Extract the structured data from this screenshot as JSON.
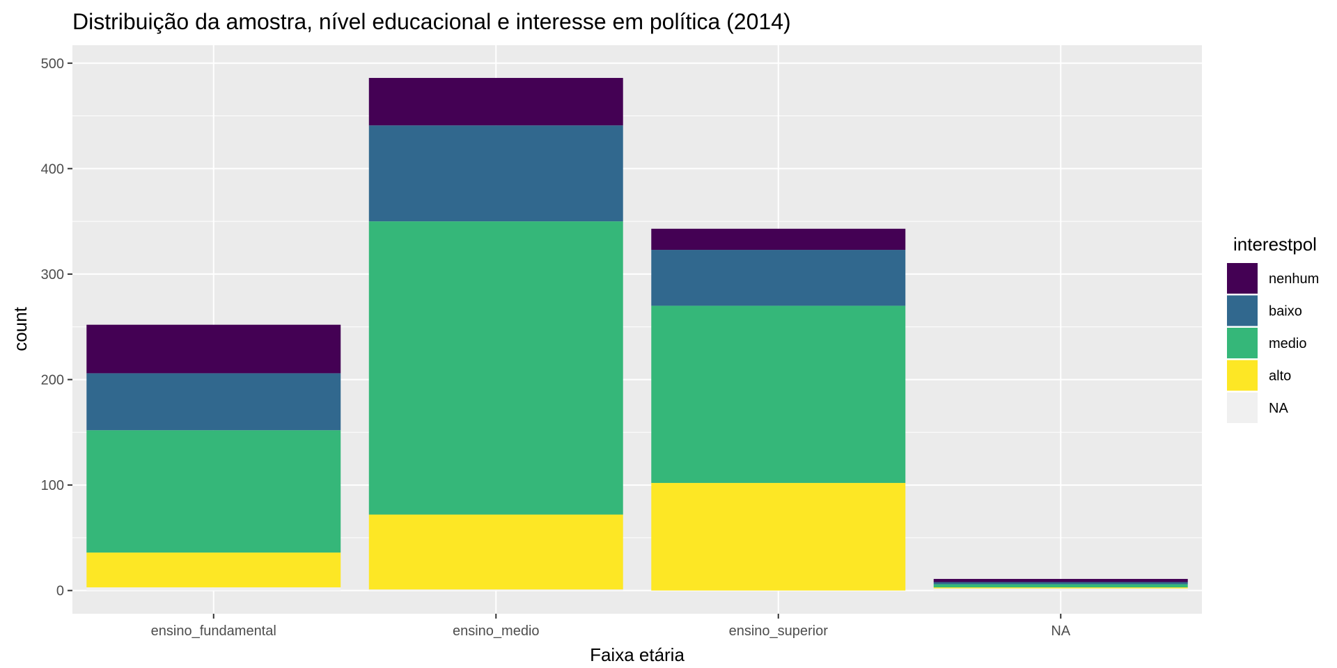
{
  "chart_data": {
    "type": "bar",
    "stacked": true,
    "title": "Distribuição da amostra, nível educacional e interesse em política (2014)",
    "xlabel": "Faixa etária",
    "ylabel": "count",
    "categories": [
      "ensino_fundamental",
      "ensino_medio",
      "ensino_superior",
      "NA"
    ],
    "ylim": [
      -22,
      517
    ],
    "yticks": [
      0,
      100,
      200,
      300,
      400,
      500
    ],
    "grid": true,
    "legend": {
      "title": "interestpol",
      "position": "right",
      "entries": [
        "nenhum",
        "baixo",
        "medio",
        "alto",
        "NA"
      ]
    },
    "series": [
      {
        "name": "NA",
        "color": "#f0f0f0",
        "values": [
          3,
          1,
          0,
          2
        ]
      },
      {
        "name": "alto",
        "color": "#fde725",
        "values": [
          33,
          71,
          102,
          1
        ]
      },
      {
        "name": "medio",
        "color": "#35b779",
        "values": [
          116,
          278,
          168,
          3
        ]
      },
      {
        "name": "baixo",
        "color": "#31688e",
        "values": [
          54,
          91,
          53,
          2
        ]
      },
      {
        "name": "nenhum",
        "color": "#440154",
        "values": [
          46,
          45,
          20,
          3
        ]
      }
    ]
  }
}
